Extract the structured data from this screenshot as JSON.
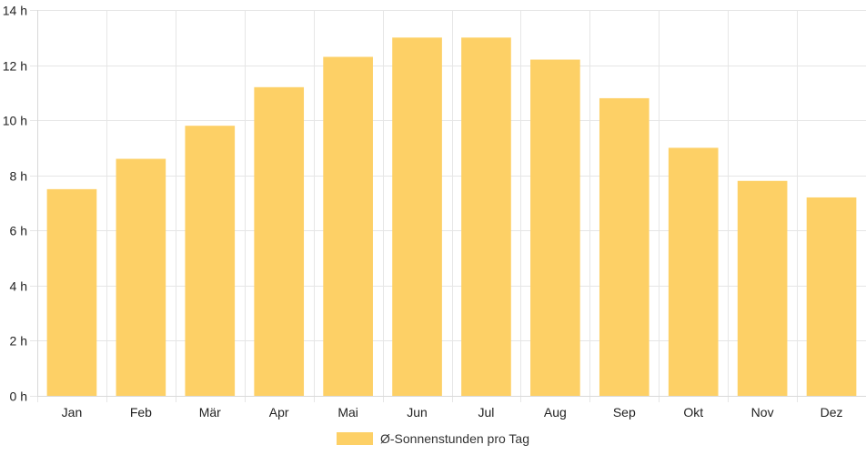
{
  "chart_data": {
    "type": "bar",
    "categories": [
      "Jan",
      "Feb",
      "Mär",
      "Apr",
      "Mai",
      "Jun",
      "Jul",
      "Aug",
      "Sep",
      "Okt",
      "Nov",
      "Dez"
    ],
    "series": [
      {
        "name": "Ø-Sonnenstunden pro Tag",
        "values": [
          7.5,
          8.6,
          9.8,
          11.2,
          12.3,
          13.0,
          13.0,
          12.2,
          10.8,
          9.0,
          7.8,
          7.2
        ],
        "color": "#fdd066"
      }
    ],
    "ylim": [
      0,
      14
    ],
    "y_ticks": [
      0,
      2,
      4,
      6,
      8,
      10,
      12,
      14
    ],
    "y_unit_suffix": " h",
    "grid": true,
    "legend_position": "bottom"
  }
}
